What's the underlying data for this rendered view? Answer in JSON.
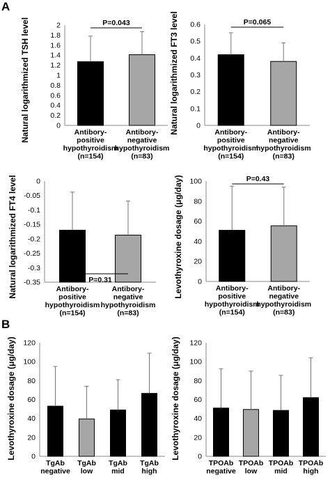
{
  "panel_labels": [
    "A",
    "B"
  ],
  "chart_data": [
    {
      "type": "bar",
      "ylabel": "Natural logarithmized TSH level",
      "ylim": [
        0,
        2
      ],
      "yticks": [
        "0",
        "0.2",
        "0.4",
        "0.6",
        "0.8",
        "1",
        "1.2",
        "1.4",
        "1.6",
        "1.8",
        "2"
      ],
      "categories": [
        [
          "Antibory-",
          "positive",
          "hypothyroidism",
          "(n=154)"
        ],
        [
          "Antibory-",
          "negative",
          "hypothyroidism",
          "(n=83)"
        ]
      ],
      "values": [
        1.27,
        1.41
      ],
      "errors": [
        0.51,
        0.46
      ],
      "bar_colors": [
        "#000000",
        "#a6a6a6"
      ],
      "annotation": "P=0.043",
      "annotation_position": "top"
    },
    {
      "type": "bar",
      "ylabel": "Natural logarithmized FT3 level",
      "ylim": [
        0,
        0.6
      ],
      "yticks": [
        "0",
        "0.1",
        "0.2",
        "0.3",
        "0.4",
        "0.5",
        "0.6"
      ],
      "categories": [
        [
          "Antibory-",
          "positive",
          "hypothyroidism",
          "(n=154)"
        ],
        [
          "Antibory-",
          "negative",
          "hypothyroidism",
          "(n=83)"
        ]
      ],
      "values": [
        0.42,
        0.38
      ],
      "errors": [
        0.13,
        0.11
      ],
      "bar_colors": [
        "#000000",
        "#a6a6a6"
      ],
      "annotation": "P=0.065",
      "annotation_position": "top"
    },
    {
      "type": "bar",
      "ylabel": "Natural logarithmized FT4 level",
      "ylim": [
        -0.35,
        0
      ],
      "yticks": [
        "0",
        "-0.05",
        "-0.1",
        "-0.15",
        "-0.2",
        "-0.25",
        "-0.3",
        "-0.35"
      ],
      "categories": [
        [
          "Antibory-",
          "positive",
          "hypothyroidism",
          "(n=154)"
        ],
        [
          "Antibory-",
          "negative",
          "hypothyroidism",
          "(n=83)"
        ]
      ],
      "values": [
        -0.17,
        -0.187
      ],
      "errors": [
        0.132,
        0.118
      ],
      "bar_colors": [
        "#000000",
        "#a6a6a6"
      ],
      "annotation": "P=0.31",
      "annotation_position": "bottom"
    },
    {
      "type": "bar",
      "ylabel": "Levothyroxine dosage (μg/day)",
      "ylim": [
        0,
        100
      ],
      "yticks": [
        "0",
        "20",
        "40",
        "60",
        "80",
        "100"
      ],
      "categories": [
        [
          "Antibory-",
          "positive",
          "hypothyroidism",
          "(n=154)"
        ],
        [
          "Antibory-",
          "negative",
          "hypothyroidism",
          "(n=83)"
        ]
      ],
      "values": [
        51,
        55.5
      ],
      "errors": [
        44,
        38.5
      ],
      "bar_colors": [
        "#000000",
        "#a6a6a6"
      ],
      "annotation": "P=0.43",
      "annotation_position": "top"
    },
    {
      "type": "bar",
      "ylabel": "Levothyroxine dosage (μg/day)",
      "ylim": [
        0,
        120
      ],
      "yticks": [
        "0",
        "20",
        "40",
        "60",
        "80",
        "100",
        "120"
      ],
      "categories": [
        [
          "TgAb",
          "negative"
        ],
        [
          "TgAb",
          "low"
        ],
        [
          "TgAb",
          "mid"
        ],
        [
          "TgAb",
          "high"
        ]
      ],
      "values": [
        53,
        39.5,
        49,
        66.5
      ],
      "errors": [
        42,
        34.5,
        32,
        42.5
      ],
      "bar_colors": [
        "#000000",
        "#a6a6a6",
        "#000000",
        "#000000"
      ]
    },
    {
      "type": "bar",
      "ylabel": "Levothyroxine dosage (μg/day)",
      "ylim": [
        0,
        120
      ],
      "yticks": [
        "0",
        "20",
        "40",
        "60",
        "80",
        "100",
        "120"
      ],
      "categories": [
        [
          "TPOAb",
          "negative"
        ],
        [
          "TPOAb",
          "low"
        ],
        [
          "TPOAb",
          "mid"
        ],
        [
          "TPOAb",
          "high"
        ]
      ],
      "values": [
        51,
        49.5,
        48.5,
        62
      ],
      "errors": [
        41.5,
        40.5,
        37,
        42
      ],
      "bar_colors": [
        "#000000",
        "#a6a6a6",
        "#000000",
        "#000000"
      ]
    }
  ]
}
